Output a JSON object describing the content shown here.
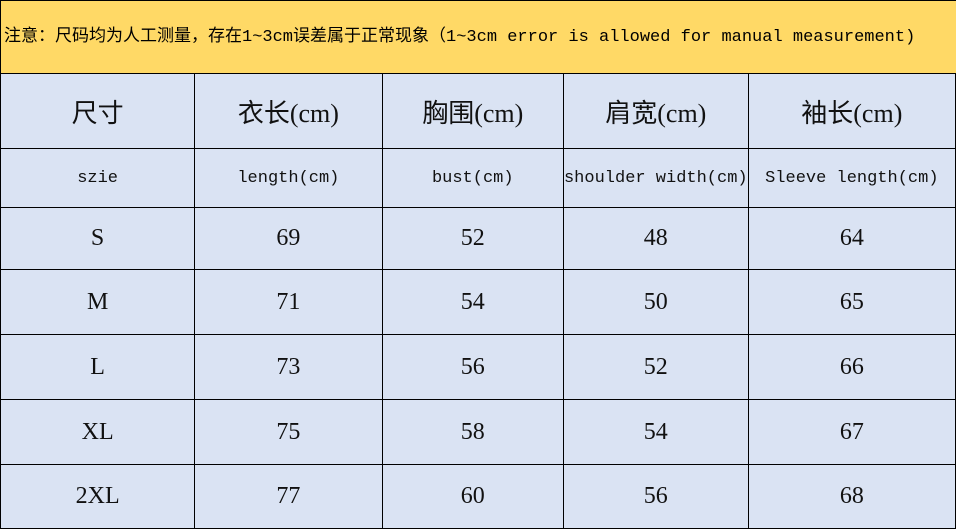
{
  "note": "注意：尺码均为人工测量，存在1~3cm误差属于正常现象（1~3cm error is allowed for manual measurement)",
  "table": {
    "header": [
      "尺寸",
      "衣长(cm)",
      "胸围(cm)",
      "肩宽(cm)",
      "袖长(cm)"
    ],
    "subheader": [
      "szie",
      "length(cm)",
      "bust(cm)",
      "shoulder width(cm)",
      "Sleeve length(cm)"
    ],
    "rows": [
      [
        "S",
        69,
        52,
        48,
        64
      ],
      [
        "M",
        71,
        54,
        50,
        65
      ],
      [
        "L",
        73,
        56,
        52,
        66
      ],
      [
        "XL",
        75,
        58,
        54,
        67
      ],
      [
        "2XL",
        77,
        60,
        56,
        68
      ]
    ]
  }
}
